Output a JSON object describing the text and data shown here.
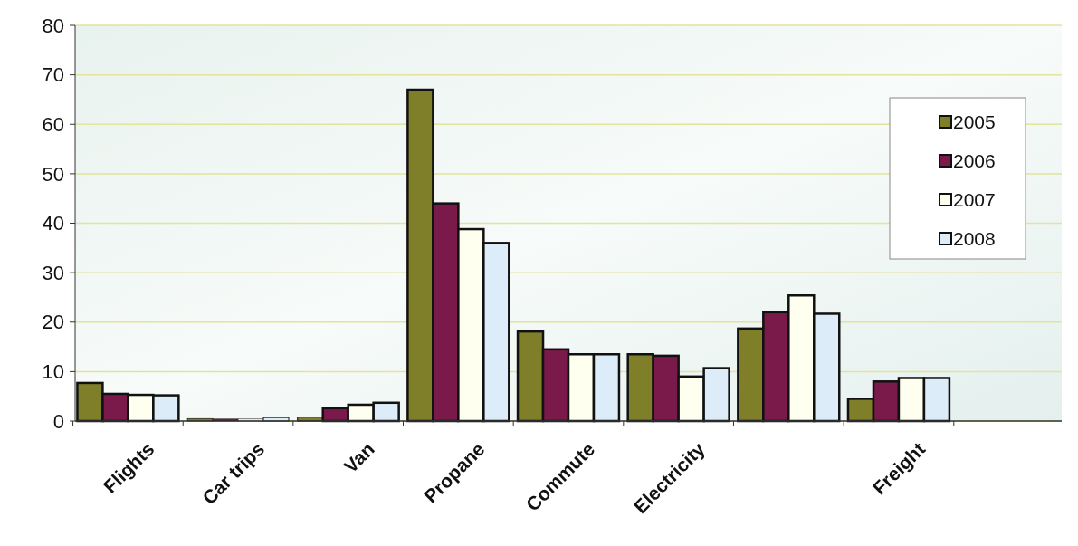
{
  "chart_data": {
    "type": "bar",
    "categories": [
      "Flights",
      "Car trips",
      "Van",
      "Propane",
      "Commute",
      "Electricity",
      null,
      "Freight",
      null
    ],
    "series": [
      {
        "name": "2005",
        "color": "#7f7f2a",
        "values": [
          7.7,
          0.5,
          0.8,
          67,
          18.1,
          13.5,
          18.7,
          4.5,
          null
        ]
      },
      {
        "name": "2006",
        "color": "#7a1a4a",
        "values": [
          5.5,
          0.4,
          2.6,
          44,
          14.5,
          13.2,
          22,
          8,
          null
        ]
      },
      {
        "name": "2007",
        "color": "#fffff0",
        "values": [
          5.3,
          0.4,
          3.3,
          38.8,
          13.5,
          9,
          25.4,
          8.7,
          null
        ]
      },
      {
        "name": "2008",
        "color": "#dcecf8",
        "values": [
          5.2,
          0.7,
          3.7,
          36,
          13.5,
          10.7,
          21.7,
          8.7,
          null
        ]
      }
    ],
    "ylim": [
      0,
      80
    ],
    "yticks": [
      0,
      10,
      20,
      30,
      40,
      50,
      60,
      70,
      80
    ],
    "grid": "y",
    "legend": "top right"
  }
}
